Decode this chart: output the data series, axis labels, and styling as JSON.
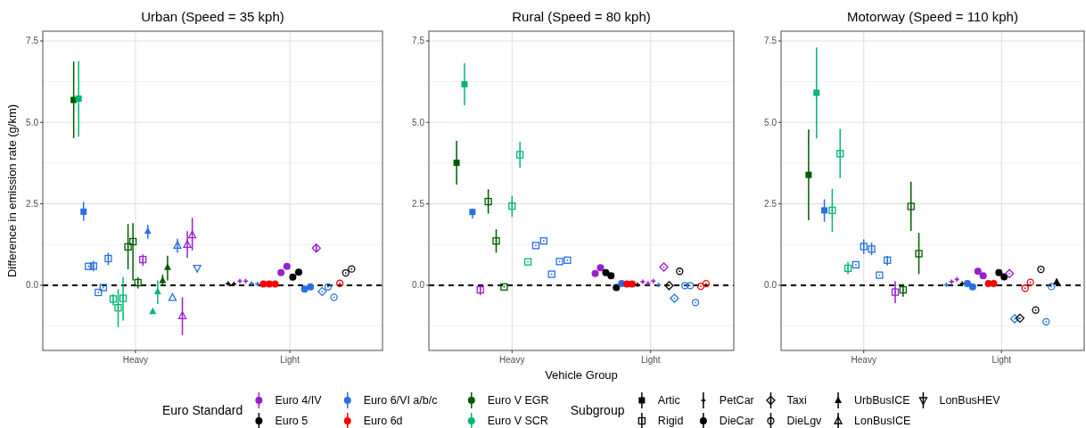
{
  "chart_data": [
    {
      "type": "scatter",
      "title": "Urban (Speed = 35 kph)",
      "ylabel": "Difference in emission rate (g/km)",
      "categories": [
        "Heavy",
        "Light"
      ],
      "ylim": [
        -2.0,
        7.8
      ],
      "yticks": [
        {
          "value": -1.25,
          "label": null
        },
        {
          "value": 0,
          "label": "0.0"
        },
        {
          "value": 1.25,
          "label": null
        },
        {
          "value": 2.5,
          "label": "2.5"
        },
        {
          "value": 3.75,
          "label": null
        },
        {
          "value": 5,
          "label": "5.0"
        },
        {
          "value": 6.25,
          "label": null
        },
        {
          "value": 7.5,
          "label": "7.5"
        }
      ],
      "grid": true,
      "legend": "bottom",
      "ref_lines": [
        {
          "axis": "y",
          "value": 0,
          "color": "#000000",
          "line_style": "dashed"
        }
      ],
      "series": [
        {
          "name": "Euro V EGR",
          "color": "#005a00",
          "marker": "square",
          "x": [
            "Heavy"
          ],
          "values": [
            5.69
          ],
          "errors": [
            [
              4.52,
              6.87
            ]
          ]
        },
        {
          "name": "Euro V SCR",
          "color": "#00b870",
          "marker": "square",
          "x": [
            "Heavy"
          ],
          "values": [
            5.73
          ],
          "errors": [
            [
              4.56,
              6.88
            ]
          ]
        },
        {
          "color": "#2a6fe0",
          "marker": "square",
          "x": [
            "Heavy"
          ],
          "values": [
            2.26
          ],
          "errors": [
            [
              1.98,
              2.56
            ]
          ]
        },
        {
          "color": "#2a6fe0",
          "marker": "square-open",
          "x": [
            "Heavy",
            "Heavy",
            "Heavy",
            "Heavy",
            "Heavy"
          ],
          "values": [
            0.58,
            0.59,
            -0.22,
            -0.07,
            0.82
          ],
          "errors": [
            null,
            [
              0.43,
              0.75
            ],
            null,
            null,
            [
              0.62,
              1.0
            ]
          ]
        },
        {
          "color": "#00b870",
          "marker": "square-open",
          "x": [
            "Heavy",
            "Heavy",
            "Heavy"
          ],
          "values": [
            -0.42,
            -0.69,
            -0.4
          ],
          "errors": [
            [
              -0.62,
              -0.27
            ],
            [
              -1.28,
              -0.12
            ],
            [
              -1.08,
              0.25
            ]
          ]
        },
        {
          "color": "#005a00",
          "marker": "square-open",
          "x": [
            "Heavy",
            "Heavy",
            "Heavy"
          ],
          "values": [
            1.18,
            1.34,
            0.08
          ],
          "errors": [
            [
              0.49,
              1.88
            ],
            [
              0.15,
              1.91
            ],
            [
              -0.1,
              0.25
            ]
          ]
        },
        {
          "color": "#9a1fd0",
          "marker": "square-open",
          "x": [
            "Heavy"
          ],
          "values": [
            0.79
          ],
          "errors": [
            [
              0.6,
              0.95
            ]
          ]
        },
        {
          "color": "#000000",
          "marker": "plus",
          "x": [
            "Light",
            "Light"
          ],
          "values": [
            0.05,
            0.04
          ]
        },
        {
          "color": "#9a1fd0",
          "marker": "plus",
          "x": [
            "Light",
            "Light"
          ],
          "values": [
            0.13,
            0.13
          ]
        },
        {
          "color": "#2a6fe0",
          "marker": "plus",
          "x": [
            "Light",
            "Light"
          ],
          "values": [
            0.05,
            0.04
          ]
        },
        {
          "name": "Euro 6d",
          "color": "#ff0000",
          "marker": "circle",
          "x": [
            "Light",
            "Light",
            "Light"
          ],
          "values": [
            0.04,
            0.04,
            0.04
          ]
        },
        {
          "name": "Euro 4/IV",
          "color": "#9a1fd0",
          "marker": "circle",
          "x": [
            "Light",
            "Light"
          ],
          "values": [
            0.39,
            0.58
          ]
        },
        {
          "name": "Euro 5",
          "color": "#000000",
          "marker": "circle",
          "x": [
            "Light",
            "Light"
          ],
          "values": [
            0.25,
            0.4
          ]
        },
        {
          "name": "Euro 6/VI a/b/c",
          "color": "#2a6fe0",
          "marker": "circle",
          "x": [
            "Light",
            "Light"
          ],
          "values": [
            -0.12,
            -0.05
          ]
        },
        {
          "color": "#9a1fd0",
          "marker": "diamond-open",
          "x": [
            "Light"
          ],
          "values": [
            1.14
          ],
          "errors": [
            [
              1.02,
              1.26
            ]
          ]
        },
        {
          "color": "#2a6fe0",
          "marker": "diamond-open",
          "x": [
            "Light"
          ],
          "values": [
            -0.19
          ]
        },
        {
          "color": "#2a6fe0",
          "marker": "circle-open",
          "x": [
            "Light",
            "Light"
          ],
          "values": [
            -0.05,
            -0.37
          ]
        },
        {
          "color": "#ff0000",
          "marker": "circle-open",
          "x": [
            "Light"
          ],
          "values": [
            0.06
          ]
        },
        {
          "color": "#000000",
          "marker": "circle-open",
          "x": [
            "Light",
            "Light"
          ],
          "values": [
            0.38,
            0.5
          ]
        },
        {
          "color": "#2a6fe0",
          "marker": "triangle",
          "x": [
            "Heavy"
          ],
          "values": [
            1.66
          ],
          "errors": [
            [
              1.43,
              1.86
            ]
          ]
        },
        {
          "color": "#00b870",
          "marker": "triangle",
          "x": [
            "Heavy",
            "Heavy"
          ],
          "values": [
            -0.8,
            -0.19
          ],
          "errors": [
            null,
            [
              -0.57,
              0.15
            ]
          ]
        },
        {
          "color": "#005a00",
          "marker": "triangle",
          "x": [
            "Heavy",
            "Heavy"
          ],
          "values": [
            0.15,
            0.55
          ],
          "errors": [
            [
              0.0,
              0.33
            ],
            [
              0.15,
              0.91
            ]
          ]
        },
        {
          "color": "#2a6fe0",
          "marker": "triangle-open",
          "x": [
            "Heavy",
            "Heavy"
          ],
          "values": [
            -0.38,
            1.22
          ],
          "errors": [
            null,
            [
              1.0,
              1.43
            ]
          ]
        },
        {
          "color": "#9a1fd0",
          "marker": "triangle-open",
          "x": [
            "Heavy",
            "Heavy",
            "Heavy"
          ],
          "values": [
            -0.94,
            1.25,
            1.54
          ],
          "errors": [
            [
              -1.53,
              -0.37
            ],
            [
              0.84,
              1.66
            ],
            [
              1.07,
              2.07
            ]
          ]
        },
        {
          "color": "#2a6fe0",
          "marker": "triangle-down-open",
          "x": [
            "Heavy"
          ],
          "values": [
            0.53
          ]
        }
      ]
    },
    {
      "type": "scatter",
      "title": "Rural (Speed = 80 kph)",
      "xlabel": "Vehicle Group",
      "categories": [
        "Heavy",
        "Light"
      ],
      "ylim": [
        -2.0,
        7.8
      ],
      "yticks": [
        {
          "value": -1.25,
          "label": null
        },
        {
          "value": 0,
          "label": "0.0"
        },
        {
          "value": 1.25,
          "label": null
        },
        {
          "value": 2.5,
          "label": "2.5"
        },
        {
          "value": 3.75,
          "label": null
        },
        {
          "value": 5,
          "label": "5.0"
        },
        {
          "value": 6.25,
          "label": null
        },
        {
          "value": 7.5,
          "label": "7.5"
        }
      ],
      "grid": true,
      "legend": "bottom",
      "legend_title": "Euro Standard",
      "annotations": [
        "Subgroup",
        "Artic",
        "Rigid",
        "PetCar",
        "DieCar",
        "Taxi",
        "DieLgv",
        "UrbBusICE",
        "LonBusICE",
        "LonBusHEV"
      ],
      "ref_lines": [
        {
          "axis": "y",
          "value": 0,
          "color": "#000000",
          "line_style": "dashed"
        }
      ],
      "series": [
        {
          "name": "Euro 4/IV",
          "color": "#9a1fd0",
          "marker": "circle",
          "x": [
            "Light",
            "Light"
          ],
          "values": [
            0.36,
            0.54
          ]
        },
        {
          "name": "Euro 5",
          "color": "#000000",
          "marker": "circle",
          "x": [
            "Light",
            "Light",
            "Light"
          ],
          "values": [
            0.39,
            0.29,
            -0.07
          ]
        },
        {
          "name": "Euro 6/VI a/b/c",
          "color": "#2a6fe0",
          "marker": "circle",
          "x": [
            "Light"
          ],
          "values": [
            0.05
          ]
        },
        {
          "name": "Euro 6d",
          "color": "#ff0000",
          "marker": "circle",
          "x": [
            "Light",
            "Light"
          ],
          "values": [
            0.04,
            0.04
          ]
        },
        {
          "name": "Euro V EGR",
          "color": "#005a00",
          "marker": "square",
          "x": [
            "Heavy"
          ],
          "values": [
            3.76
          ],
          "errors": [
            [
              3.09,
              4.43
            ]
          ]
        },
        {
          "name": "Euro V SCR",
          "color": "#00b870",
          "marker": "square",
          "x": [
            "Heavy"
          ],
          "values": [
            6.17
          ],
          "errors": [
            [
              5.52,
              6.82
            ]
          ]
        },
        {
          "color": "#2a6fe0",
          "marker": "square",
          "x": [
            "Heavy"
          ],
          "values": [
            2.25
          ],
          "errors": [
            [
              2.05,
              2.35
            ]
          ]
        },
        {
          "color": "#9a1fd0",
          "marker": "square-open",
          "x": [
            "Heavy"
          ],
          "values": [
            -0.14
          ],
          "errors": [
            [
              -0.3,
              0.0
            ]
          ]
        },
        {
          "color": "#005a00",
          "marker": "square-open",
          "x": [
            "Heavy",
            "Heavy",
            "Heavy"
          ],
          "values": [
            2.57,
            1.36,
            -0.05
          ],
          "errors": [
            [
              2.2,
              2.95
            ],
            [
              1.0,
              1.72
            ],
            null
          ]
        },
        {
          "color": "#00b870",
          "marker": "square-open",
          "x": [
            "Heavy",
            "Heavy",
            "Heavy"
          ],
          "values": [
            2.43,
            4.01,
            0.72
          ],
          "errors": [
            [
              2.1,
              2.75
            ],
            [
              3.61,
              4.4
            ],
            null
          ]
        },
        {
          "color": "#2a6fe0",
          "marker": "square-open",
          "x": [
            "Heavy",
            "Heavy",
            "Heavy",
            "Heavy",
            "Heavy"
          ],
          "values": [
            1.22,
            1.36,
            0.34,
            0.73,
            0.77
          ]
        },
        {
          "color": "#000000",
          "marker": "plus",
          "x": [
            "Light"
          ],
          "values": [
            0.02
          ]
        },
        {
          "color": "#9a1fd0",
          "marker": "plus",
          "x": [
            "Light",
            "Light",
            "Light"
          ],
          "values": [
            0.11,
            0.06,
            0.13
          ]
        },
        {
          "color": "#2a6fe0",
          "marker": "plus",
          "x": [
            "Light"
          ],
          "values": [
            0.01
          ]
        },
        {
          "color": "#9a1fd0",
          "marker": "diamond-open",
          "x": [
            "Light"
          ],
          "values": [
            0.56
          ]
        },
        {
          "color": "#000000",
          "marker": "diamond-open",
          "x": [
            "Light"
          ],
          "values": [
            -0.01
          ]
        },
        {
          "color": "#2a6fe0",
          "marker": "diamond-open",
          "x": [
            "Light"
          ],
          "values": [
            -0.4
          ]
        },
        {
          "color": "#000000",
          "marker": "circle-open",
          "x": [
            "Light"
          ],
          "values": [
            0.43
          ]
        },
        {
          "color": "#2a6fe0",
          "marker": "circle-open",
          "x": [
            "Light",
            "Light",
            "Light"
          ],
          "values": [
            -0.01,
            -0.01,
            -0.53
          ]
        },
        {
          "color": "#ff0000",
          "marker": "circle-open",
          "x": [
            "Light",
            "Light"
          ],
          "values": [
            -0.03,
            0.05
          ]
        }
      ]
    },
    {
      "type": "scatter",
      "title": "Motorway (Speed = 110 kph)",
      "categories": [
        "Heavy",
        "Light"
      ],
      "ylim": [
        -2.0,
        7.8
      ],
      "yticks": [
        {
          "value": -1.25,
          "label": null
        },
        {
          "value": 0,
          "label": "0.0"
        },
        {
          "value": 1.25,
          "label": null
        },
        {
          "value": 2.5,
          "label": "2.5"
        },
        {
          "value": 3.75,
          "label": null
        },
        {
          "value": 5,
          "label": "5.0"
        },
        {
          "value": 6.25,
          "label": null
        },
        {
          "value": 7.5,
          "label": "7.5"
        }
      ],
      "grid": true,
      "legend": "bottom",
      "ref_lines": [
        {
          "axis": "y",
          "value": 0,
          "color": "#000000",
          "line_style": "dashed"
        }
      ],
      "series": [
        {
          "name": "Euro V EGR",
          "color": "#005a00",
          "marker": "square",
          "x": [
            "Heavy"
          ],
          "values": [
            3.39
          ],
          "errors": [
            [
              2.0,
              4.78
            ]
          ]
        },
        {
          "name": "Euro V SCR",
          "color": "#00b870",
          "marker": "square",
          "x": [
            "Heavy"
          ],
          "values": [
            5.91
          ],
          "errors": [
            [
              4.51,
              7.3
            ]
          ]
        },
        {
          "color": "#2a6fe0",
          "marker": "square",
          "x": [
            "Heavy"
          ],
          "values": [
            2.3
          ],
          "errors": [
            [
              1.95,
              2.64
            ]
          ]
        },
        {
          "color": "#00b870",
          "marker": "square-open",
          "x": [
            "Heavy",
            "Heavy",
            "Heavy"
          ],
          "values": [
            2.3,
            4.04,
            0.52
          ],
          "errors": [
            [
              1.64,
              2.96
            ],
            [
              3.29,
              4.8
            ],
            [
              0.34,
              0.72
            ]
          ]
        },
        {
          "color": "#2a6fe0",
          "marker": "square-open",
          "x": [
            "Heavy",
            "Heavy",
            "Heavy",
            "Heavy",
            "Heavy"
          ],
          "values": [
            0.63,
            1.19,
            1.11,
            0.31,
            0.77
          ],
          "errors": [
            null,
            [
              0.96,
              1.41
            ],
            [
              0.93,
              1.31
            ],
            null,
            [
              0.61,
              0.9
            ]
          ]
        },
        {
          "color": "#9a1fd0",
          "marker": "square-open",
          "x": [
            "Heavy"
          ],
          "values": [
            -0.21
          ],
          "errors": [
            [
              -0.55,
              0.13
            ]
          ]
        },
        {
          "color": "#005a00",
          "marker": "square-open",
          "x": [
            "Heavy",
            "Heavy",
            "Heavy"
          ],
          "values": [
            -0.14,
            2.42,
            0.97
          ],
          "errors": [
            [
              -0.35,
              0.04
            ],
            [
              1.67,
              3.18
            ],
            [
              0.34,
              1.61
            ]
          ]
        },
        {
          "color": "#2a6fe0",
          "marker": "plus",
          "x": [
            "Light"
          ],
          "values": [
            0.01
          ]
        },
        {
          "color": "#9a1fd0",
          "marker": "plus",
          "x": [
            "Light",
            "Light"
          ],
          "values": [
            0.11,
            0.18
          ]
        },
        {
          "color": "#000000",
          "marker": "plus",
          "x": [
            "Light"
          ],
          "values": [
            0.05
          ]
        },
        {
          "name": "Euro 6/VI a/b/c",
          "color": "#2a6fe0",
          "marker": "circle",
          "x": [
            "Light",
            "Light"
          ],
          "values": [
            0.05,
            -0.05
          ]
        },
        {
          "name": "Euro 4/IV",
          "color": "#9a1fd0",
          "marker": "circle",
          "x": [
            "Light",
            "Light"
          ],
          "values": [
            0.43,
            0.29
          ]
        },
        {
          "name": "Euro 6d",
          "color": "#ff0000",
          "marker": "circle",
          "x": [
            "Light",
            "Light"
          ],
          "values": [
            0.05,
            0.05
          ]
        },
        {
          "name": "Euro 5",
          "color": "#000000",
          "marker": "circle",
          "x": [
            "Light",
            "Light"
          ],
          "values": [
            0.39,
            0.26
          ]
        },
        {
          "color": "#9a1fd0",
          "marker": "diamond-open",
          "x": [
            "Light"
          ],
          "values": [
            0.36
          ]
        },
        {
          "color": "#2a6fe0",
          "marker": "diamond-open",
          "x": [
            "Light"
          ],
          "values": [
            -1.03
          ]
        },
        {
          "color": "#000000",
          "marker": "diamond-open",
          "x": [
            "Light"
          ],
          "values": [
            -1.01
          ]
        },
        {
          "color": "#ff0000",
          "marker": "circle-open",
          "x": [
            "Light",
            "Light"
          ],
          "values": [
            -0.09,
            0.09
          ]
        },
        {
          "color": "#000000",
          "marker": "circle-open",
          "x": [
            "Light",
            "Light"
          ],
          "values": [
            -0.76,
            0.49
          ]
        },
        {
          "color": "#2a6fe0",
          "marker": "circle-open",
          "x": [
            "Light",
            "Light"
          ],
          "values": [
            -1.12,
            -0.04
          ]
        },
        {
          "color": "#000000",
          "marker": "triangle",
          "x": [
            "Light"
          ],
          "values": [
            0.11
          ]
        }
      ]
    }
  ]
}
